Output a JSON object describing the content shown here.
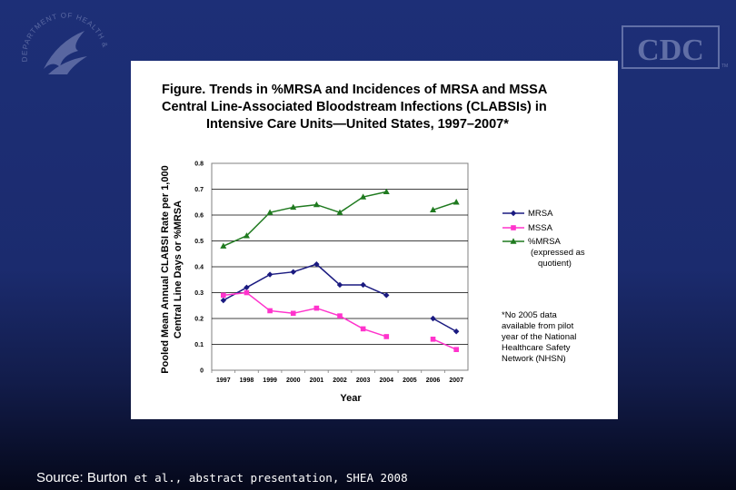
{
  "branding": {
    "cdc_logo_text": "CDC",
    "cdc_tm": "TM",
    "hhs_seal_text": "DEPARTMENT OF HEALTH & HUMAN SERVICES · USA"
  },
  "footer": {
    "source_label": "Source: Burton",
    "source_rest": " et al., abstract presentation, SHEA 2008"
  },
  "colors": {
    "mrsa": "#1a1a80",
    "mssa": "#ff33cc",
    "pct_mrsa": "#1f7a1f",
    "background": "#1d2f77"
  },
  "chart_data": {
    "type": "line",
    "title_lines": [
      "Figure. Trends in %MRSA and Incidences of MRSA and MSSA",
      "Central Line-Associated Bloodstream Infections (CLABSIs) in",
      "Intensive Care Units—United States, 1997–2007*"
    ],
    "xlabel": "Year",
    "ylabel_lines": [
      "Pooled Mean Annual CLABSI Rate per 1,000",
      "Central Line Days or %MRSA"
    ],
    "categories": [
      "1997",
      "1998",
      "1999",
      "2000",
      "2001",
      "2002",
      "2003",
      "2004",
      "2005",
      "2006",
      "2007"
    ],
    "yticks": [
      "0",
      "0.1",
      "0.2",
      "0.3",
      "0.4",
      "0.5",
      "0.6",
      "0.7",
      "0.8"
    ],
    "ylim": [
      0,
      0.8
    ],
    "grid": "horizontal",
    "series": [
      {
        "name": "MRSA",
        "marker": "diamond",
        "color": "#1a1a80",
        "values": [
          0.27,
          0.32,
          0.37,
          0.38,
          0.41,
          0.33,
          0.33,
          0.29,
          null,
          0.2,
          0.15
        ]
      },
      {
        "name": "MSSA",
        "marker": "square",
        "color": "#ff33cc",
        "values": [
          0.29,
          0.3,
          0.23,
          0.22,
          0.24,
          0.21,
          0.16,
          0.13,
          null,
          0.12,
          0.08
        ]
      },
      {
        "name": "%MRSA",
        "marker": "triangle",
        "color": "#1f7a1f",
        "values": [
          0.48,
          0.52,
          0.61,
          0.63,
          0.64,
          0.61,
          0.67,
          0.69,
          null,
          0.62,
          0.65
        ]
      }
    ],
    "legend": {
      "position": "right",
      "items": [
        "MRSA",
        "MSSA",
        "%MRSA"
      ],
      "pct_note_lines": [
        "(expressed as",
        "quotient)"
      ]
    },
    "footnote_lines": [
      "*No 2005 data",
      "available from pilot",
      "year of the National",
      "Healthcare Safety",
      "Network (NHSN)"
    ]
  }
}
